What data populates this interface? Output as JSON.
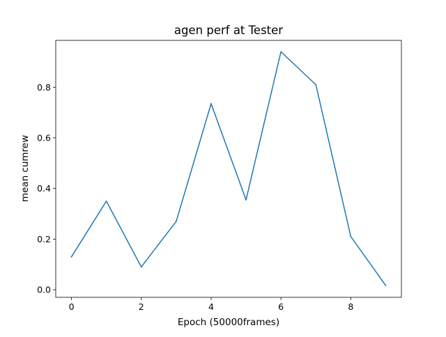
{
  "chart_data": {
    "type": "line",
    "title": "agen perf at Tester",
    "xlabel": "Epoch (50000frames)",
    "ylabel": "mean cumrew",
    "xlim": [
      -0.45,
      9.45
    ],
    "ylim": [
      -0.03,
      0.985
    ],
    "xticks": [
      0,
      2,
      4,
      6,
      8
    ],
    "yticks": [
      0.0,
      0.2,
      0.4,
      0.6,
      0.8
    ],
    "xtick_labels": [
      "0",
      "2",
      "4",
      "6",
      "8"
    ],
    "ytick_labels": [
      "0.0",
      "0.2",
      "0.4",
      "0.6",
      "0.8"
    ],
    "grid": false,
    "legend": "none",
    "series": [
      {
        "color": "#1f77b4",
        "x": [
          0,
          1,
          2,
          3,
          4,
          5,
          6,
          7,
          8,
          9
        ],
        "y": [
          0.13,
          0.35,
          0.09,
          0.27,
          0.735,
          0.355,
          0.94,
          0.81,
          0.21,
          0.017
        ]
      }
    ]
  }
}
